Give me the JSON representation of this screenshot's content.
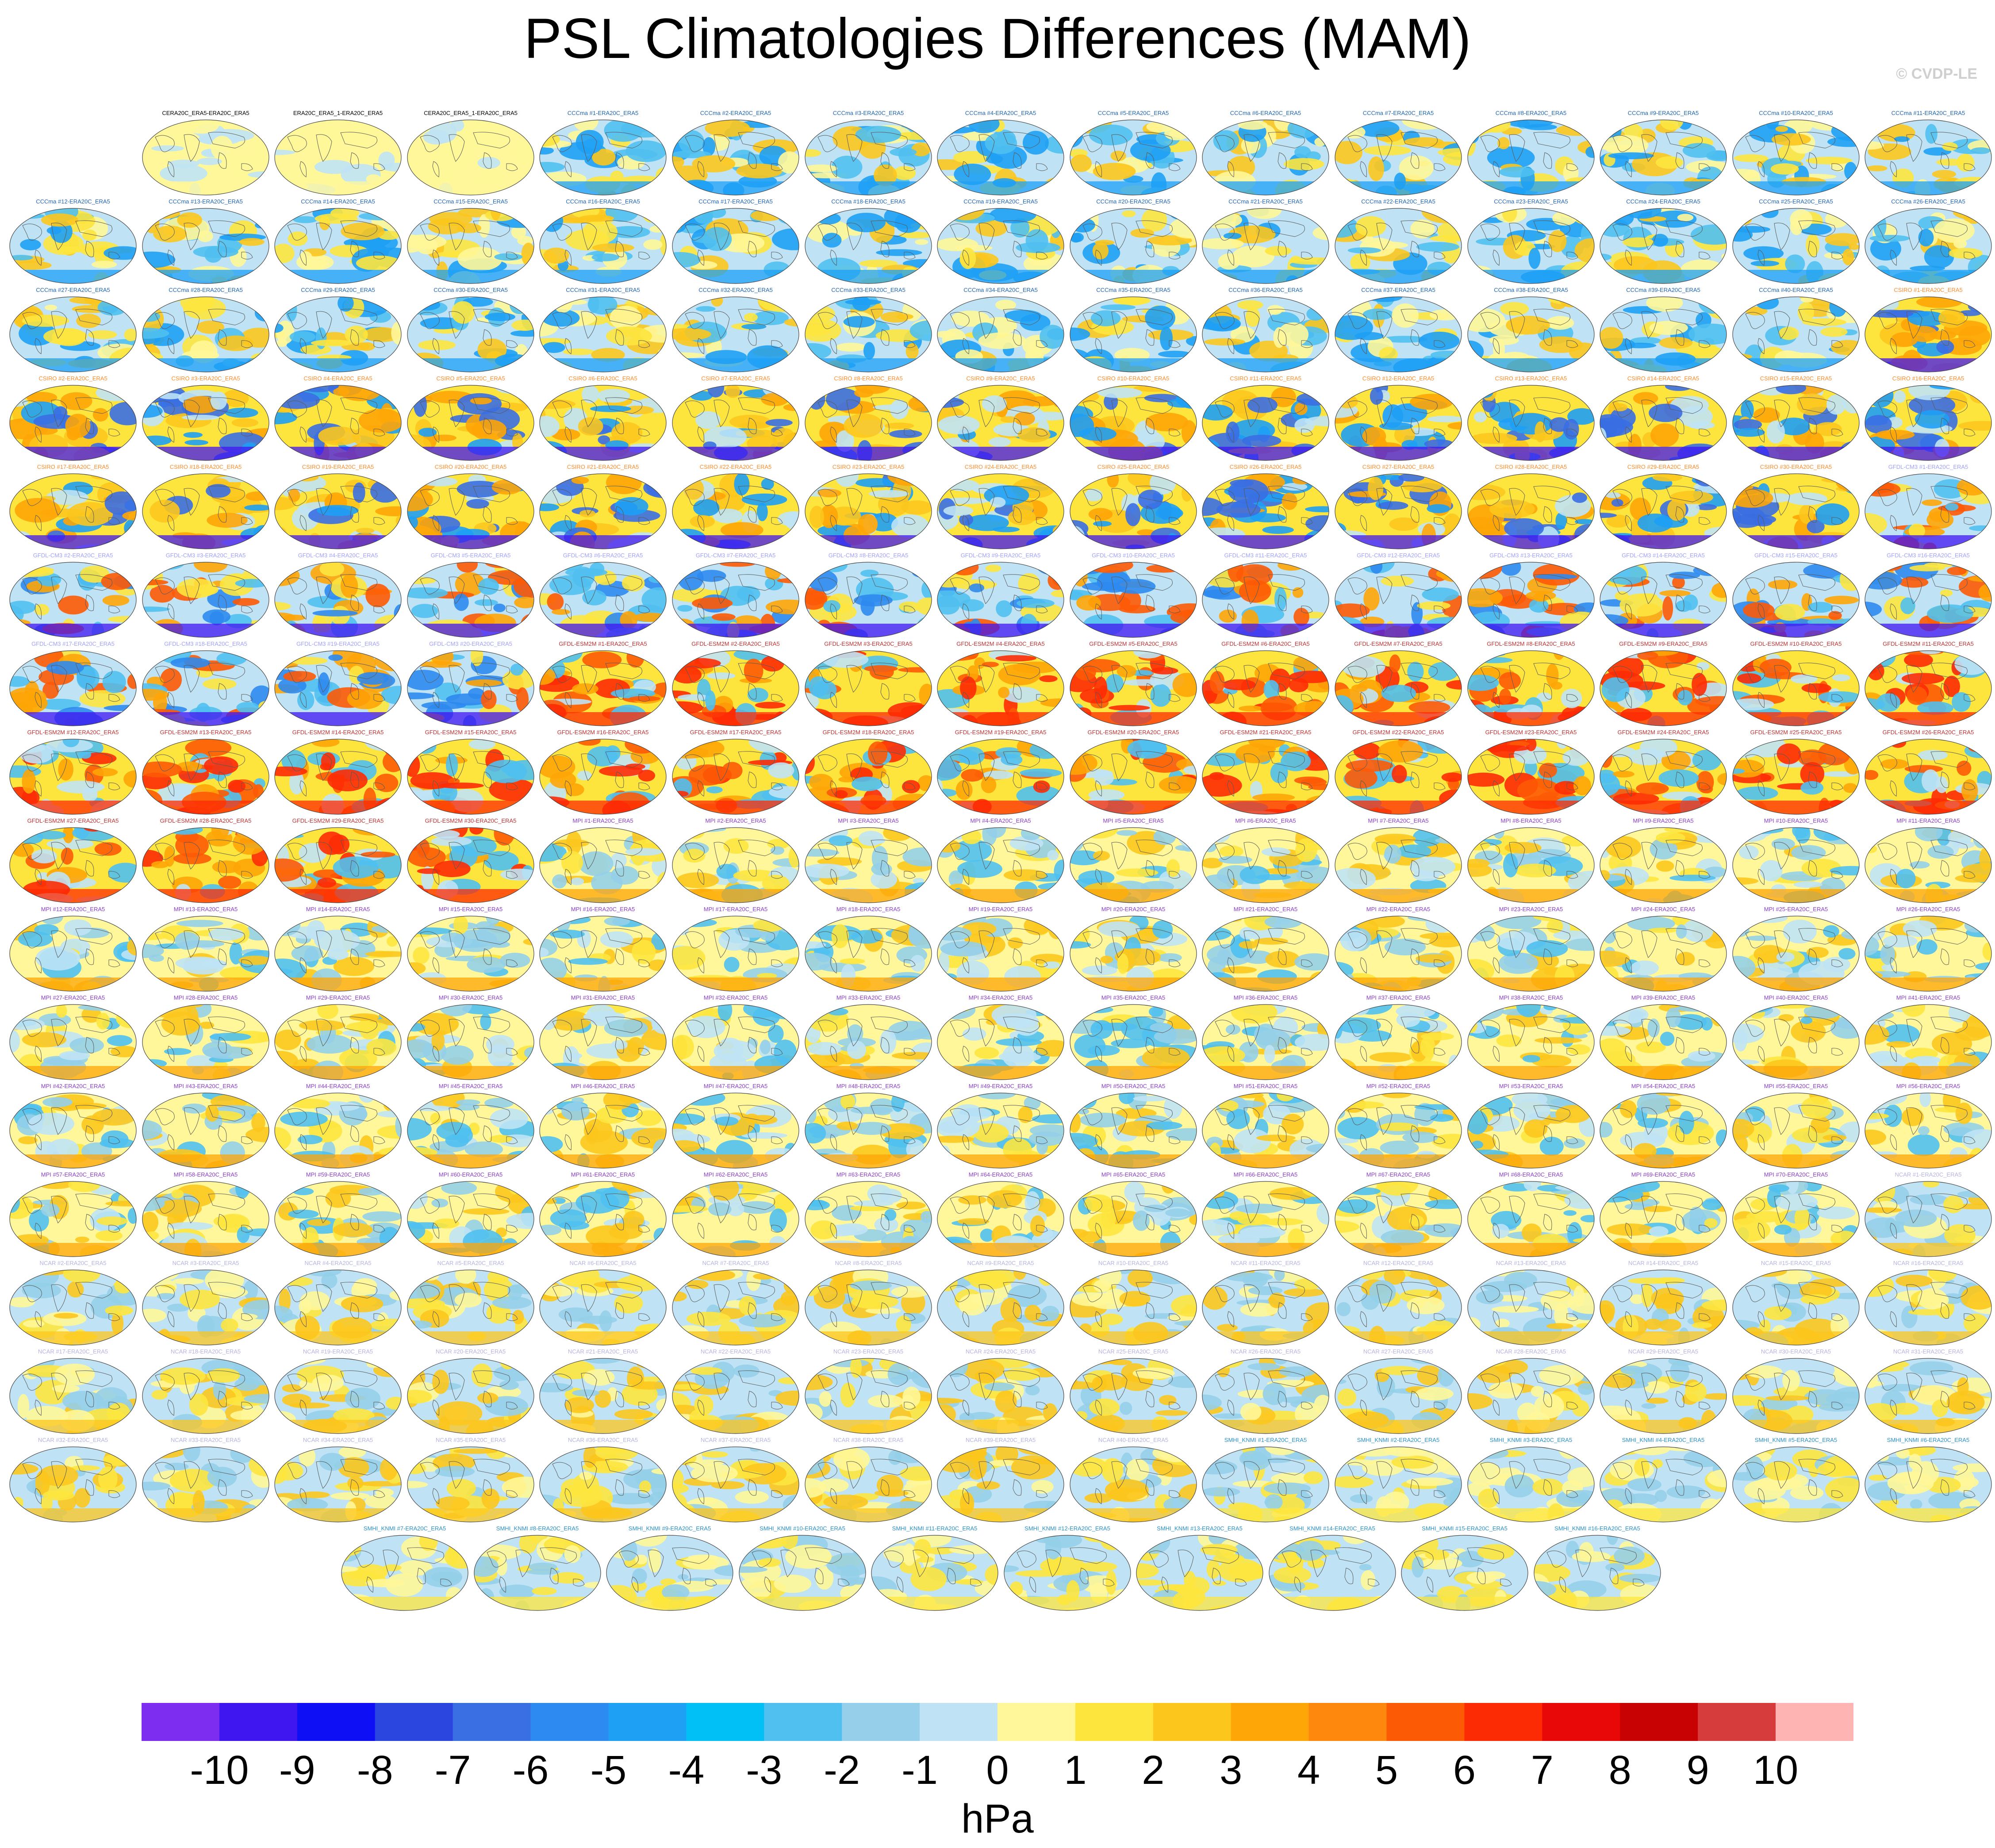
{
  "title": "PSL Climatologies Differences (MAM)",
  "copyright": "© CVDP-LE",
  "chart_data": {
    "type": "heatmap",
    "title": "PSL Climatologies Differences (MAM)",
    "variable": "PSL",
    "season": "MAM",
    "units": "hPa",
    "colorbar": {
      "tick_labels": [
        "-10",
        "-9",
        "-8",
        "-7",
        "-6",
        "-5",
        "-4",
        "-3",
        "-2",
        "-1",
        "0",
        "1",
        "2",
        "3",
        "4",
        "5",
        "6",
        "7",
        "8",
        "9",
        "10"
      ],
      "colors": [
        "#7d2df0",
        "#4016f0",
        "#0f0ff5",
        "#2a46df",
        "#3a6ee3",
        "#2d8af0",
        "#1ea0f5",
        "#00c0f5",
        "#50c0f0",
        "#95cfe9",
        "#bfe3f5",
        "#fff799",
        "#fde53e",
        "#fcc61d",
        "#fea507",
        "#fe870d",
        "#fd5a06",
        "#fd2b04",
        "#e80808",
        "#c80202",
        "#d63c3c",
        "#ffb4b4"
      ]
    },
    "panels": {
      "row1": [
        "CERA20C_ERA5-ERA20C_ERA5",
        "ERA20C_ERA5_1-ERA20C_ERA5",
        "CERA20C_ERA5_1-ERA20C_ERA5",
        "CCCma #1-ERA20C_ERA5",
        "CCCma #2-ERA20C_ERA5",
        "CCCma #3-ERA20C_ERA5",
        "CCCma #4-ERA20C_ERA5",
        "CCCma #5-ERA20C_ERA5",
        "CCCma #6-ERA20C_ERA5",
        "CCCma #7-ERA20C_ERA5",
        "CCCma #8-ERA20C_ERA5",
        "CCCma #9-ERA20C_ERA5",
        "CCCma #10-ERA20C_ERA5",
        "CCCma #11-ERA20C_ERA5"
      ],
      "row2": [
        "CCCma #12-ERA20C_ERA5",
        "CCCma #13-ERA20C_ERA5",
        "CCCma #14-ERA20C_ERA5",
        "CCCma #15-ERA20C_ERA5",
        "CCCma #16-ERA20C_ERA5",
        "CCCma #17-ERA20C_ERA5",
        "CCCma #18-ERA20C_ERA5",
        "CCCma #19-ERA20C_ERA5",
        "CCCma #20-ERA20C_ERA5",
        "CCCma #21-ERA20C_ERA5",
        "CCCma #22-ERA20C_ERA5",
        "CCCma #23-ERA20C_ERA5",
        "CCCma #24-ERA20C_ERA5",
        "CCCma #25-ERA20C_ERA5",
        "CCCma #26-ERA20C_ERA5"
      ],
      "row3": [
        "CCCma #27-ERA20C_ERA5",
        "CCCma #28-ERA20C_ERA5",
        "CCCma #29-ERA20C_ERA5",
        "CCCma #30-ERA20C_ERA5",
        "CCCma #31-ERA20C_ERA5",
        "CCCma #32-ERA20C_ERA5",
        "CCCma #33-ERA20C_ERA5",
        "CCCma #34-ERA20C_ERA5",
        "CCCma #35-ERA20C_ERA5",
        "CCCma #36-ERA20C_ERA5",
        "CCCma #37-ERA20C_ERA5",
        "CCCma #38-ERA20C_ERA5",
        "CCCma #39-ERA20C_ERA5",
        "CCCma #40-ERA20C_ERA5",
        "CSIRO #1-ERA20C_ERA5"
      ],
      "row4": [
        "CSIRO #2-ERA20C_ERA5",
        "CSIRO #3-ERA20C_ERA5",
        "CSIRO #4-ERA20C_ERA5",
        "CSIRO #5-ERA20C_ERA5",
        "CSIRO #6-ERA20C_ERA5",
        "CSIRO #7-ERA20C_ERA5",
        "CSIRO #8-ERA20C_ERA5",
        "CSIRO #9-ERA20C_ERA5",
        "CSIRO #10-ERA20C_ERA5",
        "CSIRO #11-ERA20C_ERA5",
        "CSIRO #12-ERA20C_ERA5",
        "CSIRO #13-ERA20C_ERA5",
        "CSIRO #14-ERA20C_ERA5",
        "CSIRO #15-ERA20C_ERA5",
        "CSIRO #16-ERA20C_ERA5"
      ],
      "row5": [
        "CSIRO #17-ERA20C_ERA5",
        "CSIRO #18-ERA20C_ERA5",
        "CSIRO #19-ERA20C_ERA5",
        "CSIRO #20-ERA20C_ERA5",
        "CSIRO #21-ERA20C_ERA5",
        "CSIRO #22-ERA20C_ERA5",
        "CSIRO #23-ERA20C_ERA5",
        "CSIRO #24-ERA20C_ERA5",
        "CSIRO #25-ERA20C_ERA5",
        "CSIRO #26-ERA20C_ERA5",
        "CSIRO #27-ERA20C_ERA5",
        "CSIRO #28-ERA20C_ERA5",
        "CSIRO #29-ERA20C_ERA5",
        "CSIRO #30-ERA20C_ERA5",
        "GFDL-CM3 #1-ERA20C_ERA5"
      ],
      "row6": [
        "GFDL-CM3 #2-ERA20C_ERA5",
        "GFDL-CM3 #3-ERA20C_ERA5",
        "GFDL-CM3 #4-ERA20C_ERA5",
        "GFDL-CM3 #5-ERA20C_ERA5",
        "GFDL-CM3 #6-ERA20C_ERA5",
        "GFDL-CM3 #7-ERA20C_ERA5",
        "GFDL-CM3 #8-ERA20C_ERA5",
        "GFDL-CM3 #9-ERA20C_ERA5",
        "GFDL-CM3 #10-ERA20C_ERA5",
        "GFDL-CM3 #11-ERA20C_ERA5",
        "GFDL-CM3 #12-ERA20C_ERA5",
        "GFDL-CM3 #13-ERA20C_ERA5",
        "GFDL-CM3 #14-ERA20C_ERA5",
        "GFDL-CM3 #15-ERA20C_ERA5",
        "GFDL-CM3 #16-ERA20C_ERA5"
      ],
      "row7": [
        "GFDL-CM3 #17-ERA20C_ERA5",
        "GFDL-CM3 #18-ERA20C_ERA5",
        "GFDL-CM3 #19-ERA20C_ERA5",
        "GFDL-CM3 #20-ERA20C_ERA5",
        "GFDL-ESM2M #1-ERA20C_ERA5",
        "GFDL-ESM2M #2-ERA20C_ERA5",
        "GFDL-ESM2M #3-ERA20C_ERA5",
        "GFDL-ESM2M #4-ERA20C_ERA5",
        "GFDL-ESM2M #5-ERA20C_ERA5",
        "GFDL-ESM2M #6-ERA20C_ERA5",
        "GFDL-ESM2M #7-ERA20C_ERA5",
        "GFDL-ESM2M #8-ERA20C_ERA5",
        "GFDL-ESM2M #9-ERA20C_ERA5",
        "GFDL-ESM2M #10-ERA20C_ERA5",
        "GFDL-ESM2M #11-ERA20C_ERA5"
      ],
      "row8": [
        "GFDL-ESM2M #12-ERA20C_ERA5",
        "GFDL-ESM2M #13-ERA20C_ERA5",
        "GFDL-ESM2M #14-ERA20C_ERA5",
        "GFDL-ESM2M #15-ERA20C_ERA5",
        "GFDL-ESM2M #16-ERA20C_ERA5",
        "GFDL-ESM2M #17-ERA20C_ERA5",
        "GFDL-ESM2M #18-ERA20C_ERA5",
        "GFDL-ESM2M #19-ERA20C_ERA5",
        "GFDL-ESM2M #20-ERA20C_ERA5",
        "GFDL-ESM2M #21-ERA20C_ERA5",
        "GFDL-ESM2M #22-ERA20C_ERA5",
        "GFDL-ESM2M #23-ERA20C_ERA5",
        "GFDL-ESM2M #24-ERA20C_ERA5",
        "GFDL-ESM2M #25-ERA20C_ERA5",
        "GFDL-ESM2M #26-ERA20C_ERA5"
      ],
      "row9": [
        "GFDL-ESM2M #27-ERA20C_ERA5",
        "GFDL-ESM2M #28-ERA20C_ERA5",
        "GFDL-ESM2M #29-ERA20C_ERA5",
        "GFDL-ESM2M #30-ERA20C_ERA5",
        "MPI #1-ERA20C_ERA5",
        "MPI #2-ERA20C_ERA5",
        "MPI #3-ERA20C_ERA5",
        "MPI #4-ERA20C_ERA5",
        "MPI #5-ERA20C_ERA5",
        "MPI #6-ERA20C_ERA5",
        "MPI #7-ERA20C_ERA5",
        "MPI #8-ERA20C_ERA5",
        "MPI #9-ERA20C_ERA5",
        "MPI #10-ERA20C_ERA5",
        "MPI #11-ERA20C_ERA5"
      ],
      "row10": [
        "MPI #12-ERA20C_ERA5",
        "MPI #13-ERA20C_ERA5",
        "MPI #14-ERA20C_ERA5",
        "MPI #15-ERA20C_ERA5",
        "MPI #16-ERA20C_ERA5",
        "MPI #17-ERA20C_ERA5",
        "MPI #18-ERA20C_ERA5",
        "MPI #19-ERA20C_ERA5",
        "MPI #20-ERA20C_ERA5",
        "MPI #21-ERA20C_ERA5",
        "MPI #22-ERA20C_ERA5",
        "MPI #23-ERA20C_ERA5",
        "MPI #24-ERA20C_ERA5",
        "MPI #25-ERA20C_ERA5",
        "MPI #26-ERA20C_ERA5"
      ],
      "row11": [
        "MPI #27-ERA20C_ERA5",
        "MPI #28-ERA20C_ERA5",
        "MPI #29-ERA20C_ERA5",
        "MPI #30-ERA20C_ERA5",
        "MPI #31-ERA20C_ERA5",
        "MPI #32-ERA20C_ERA5",
        "MPI #33-ERA20C_ERA5",
        "MPI #34-ERA20C_ERA5",
        "MPI #35-ERA20C_ERA5",
        "MPI #36-ERA20C_ERA5",
        "MPI #37-ERA20C_ERA5",
        "MPI #38-ERA20C_ERA5",
        "MPI #39-ERA20C_ERA5",
        "MPI #40-ERA20C_ERA5",
        "MPI #41-ERA20C_ERA5"
      ],
      "row12": [
        "MPI #42-ERA20C_ERA5",
        "MPI #43-ERA20C_ERA5",
        "MPI #44-ERA20C_ERA5",
        "MPI #45-ERA20C_ERA5",
        "MPI #46-ERA20C_ERA5",
        "MPI #47-ERA20C_ERA5",
        "MPI #48-ERA20C_ERA5",
        "MPI #49-ERA20C_ERA5",
        "MPI #50-ERA20C_ERA5",
        "MPI #51-ERA20C_ERA5",
        "MPI #52-ERA20C_ERA5",
        "MPI #53-ERA20C_ERA5",
        "MPI #54-ERA20C_ERA5",
        "MPI #55-ERA20C_ERA5",
        "MPI #56-ERA20C_ERA5"
      ],
      "row13": [
        "MPI #57-ERA20C_ERA5",
        "MPI #58-ERA20C_ERA5",
        "MPI #59-ERA20C_ERA5",
        "MPI #60-ERA20C_ERA5",
        "MPI #61-ERA20C_ERA5",
        "MPI #62-ERA20C_ERA5",
        "MPI #63-ERA20C_ERA5",
        "MPI #64-ERA20C_ERA5",
        "MPI #65-ERA20C_ERA5",
        "MPI #66-ERA20C_ERA5",
        "MPI #67-ERA20C_ERA5",
        "MPI #68-ERA20C_ERA5",
        "MPI #69-ERA20C_ERA5",
        "MPI #70-ERA20C_ERA5",
        "NCAR #1-ERA20C_ERA5"
      ],
      "row14": [
        "NCAR #2-ERA20C_ERA5",
        "NCAR #3-ERA20C_ERA5",
        "NCAR #4-ERA20C_ERA5",
        "NCAR #5-ERA20C_ERA5",
        "NCAR #6-ERA20C_ERA5",
        "NCAR #7-ERA20C_ERA5",
        "NCAR #8-ERA20C_ERA5",
        "NCAR #9-ERA20C_ERA5",
        "NCAR #10-ERA20C_ERA5",
        "NCAR #11-ERA20C_ERA5",
        "NCAR #12-ERA20C_ERA5",
        "NCAR #13-ERA20C_ERA5",
        "NCAR #14-ERA20C_ERA5",
        "NCAR #15-ERA20C_ERA5",
        "NCAR #16-ERA20C_ERA5"
      ],
      "row15": [
        "NCAR #17-ERA20C_ERA5",
        "NCAR #18-ERA20C_ERA5",
        "NCAR #19-ERA20C_ERA5",
        "NCAR #20-ERA20C_ERA5",
        "NCAR #21-ERA20C_ERA5",
        "NCAR #22-ERA20C_ERA5",
        "NCAR #23-ERA20C_ERA5",
        "NCAR #24-ERA20C_ERA5",
        "NCAR #25-ERA20C_ERA5",
        "NCAR #26-ERA20C_ERA5",
        "NCAR #27-ERA20C_ERA5",
        "NCAR #28-ERA20C_ERA5",
        "NCAR #29-ERA20C_ERA5",
        "NCAR #30-ERA20C_ERA5",
        "NCAR #31-ERA20C_ERA5"
      ],
      "row16": [
        "NCAR #32-ERA20C_ERA5",
        "NCAR #33-ERA20C_ERA5",
        "NCAR #34-ERA20C_ERA5",
        "NCAR #35-ERA20C_ERA5",
        "NCAR #36-ERA20C_ERA5",
        "NCAR #37-ERA20C_ERA5",
        "NCAR #38-ERA20C_ERA5",
        "NCAR #39-ERA20C_ERA5",
        "NCAR #40-ERA20C_ERA5",
        "SMHI_KNMI #1-ERA20C_ERA5",
        "SMHI_KNMI #2-ERA20C_ERA5",
        "SMHI_KNMI #3-ERA20C_ERA5",
        "SMHI_KNMI #4-ERA20C_ERA5",
        "SMHI_KNMI #5-ERA20C_ERA5",
        "SMHI_KNMI #6-ERA20C_ERA5"
      ],
      "row17": [
        "SMHI_KNMI #7-ERA20C_ERA5",
        "SMHI_KNMI #8-ERA20C_ERA5",
        "SMHI_KNMI #9-ERA20C_ERA5",
        "SMHI_KNMI #10-ERA20C_ERA5",
        "SMHI_KNMI #11-ERA20C_ERA5",
        "SMHI_KNMI #12-ERA20C_ERA5",
        "SMHI_KNMI #13-ERA20C_ERA5",
        "SMHI_KNMI #14-ERA20C_ERA5",
        "SMHI_KNMI #15-ERA20C_ERA5",
        "SMHI_KNMI #16-ERA20C_ERA5"
      ]
    },
    "model_colors": {
      "CERA20C": "#000000",
      "ERA20C": "#000000",
      "CCCma": "#1e64b4",
      "CSIRO": "#ff8c28",
      "GFDL-CM3": "#a0a0ff",
      "GFDL-ESM2M": "#c03030",
      "MPI": "#8a3cc8",
      "NCAR": "#b4b4e0",
      "SMHI_KNMI": "#2890c8"
    }
  }
}
